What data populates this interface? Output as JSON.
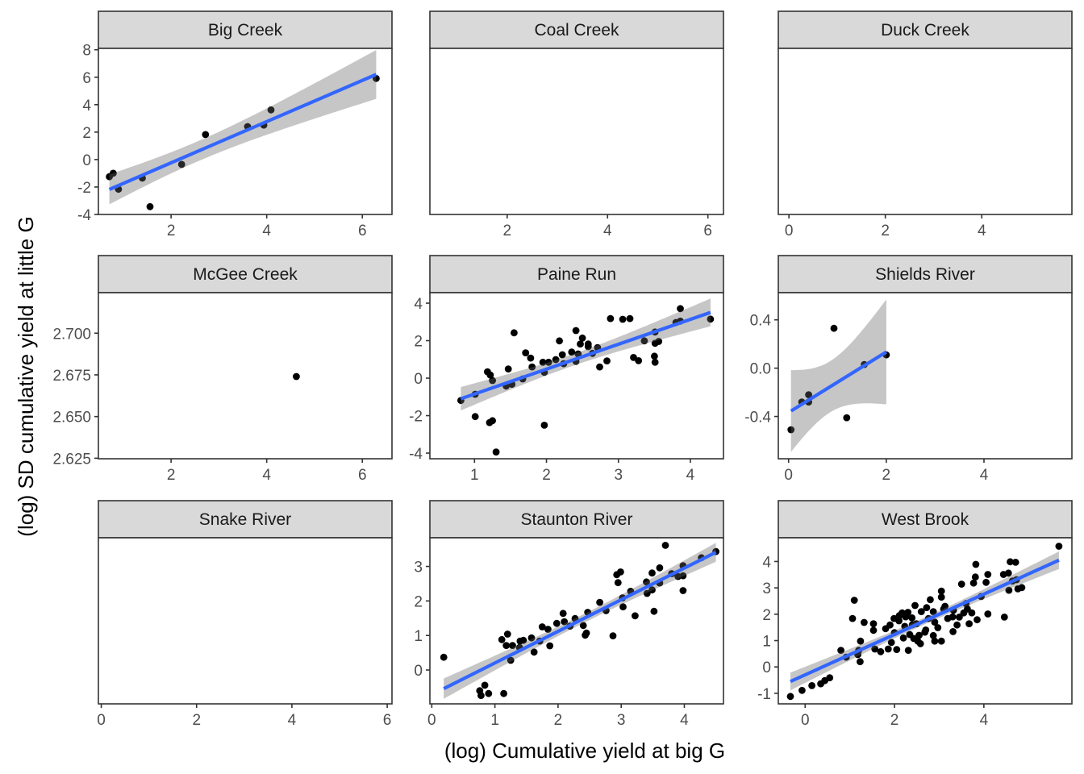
{
  "chart_data": {
    "type": "scatter",
    "layout": "facet_wrap 3x3, free scales",
    "xlabel": "(log) Cumulative yield at big G",
    "ylabel": "(log) SD cumulative yield at little G",
    "smooth": "linear fit with 95% confidence band",
    "colors": {
      "points": "#000000",
      "fit_line": "#3366FF",
      "ribbon": "#D6D6D6",
      "strip_bg": "#D9D9D9",
      "panel_border": "#333333",
      "tick_text": "#4D4D4D"
    },
    "panels": [
      {
        "title": "Big Creek",
        "xlim": [
          0.48,
          6.62
        ],
        "ylim": [
          -4.0,
          8.1
        ],
        "xticks": [
          2,
          4,
          6
        ],
        "xtick_labels": [
          "2",
          "4",
          "6"
        ],
        "yticks": [
          8,
          6,
          4,
          2,
          0,
          -2,
          -4
        ],
        "ytick_labels": [
          "8",
          "6",
          "4",
          "2",
          "0",
          "-2",
          "-4"
        ],
        "show_yticks": true,
        "fit": true,
        "points": [
          [
            0.71,
            -1.25
          ],
          [
            0.79,
            -1.0
          ],
          [
            0.9,
            -2.16
          ],
          [
            1.4,
            -1.35
          ],
          [
            1.56,
            -3.43
          ],
          [
            2.22,
            -0.35
          ],
          [
            2.72,
            1.82
          ],
          [
            3.6,
            2.4
          ],
          [
            3.94,
            2.51
          ],
          [
            4.09,
            3.62
          ],
          [
            6.29,
            5.91
          ]
        ]
      },
      {
        "title": "Coal Creek",
        "xlim": [
          0.46,
          6.31
        ],
        "ylim": [
          -4.0,
          8.1
        ],
        "xticks": [
          2,
          4,
          6
        ],
        "xtick_labels": [
          "2",
          "4",
          "6"
        ],
        "yticks": [],
        "ytick_labels": [],
        "show_yticks": false,
        "fit": false,
        "points": []
      },
      {
        "title": "Duck Creek",
        "xlim": [
          -0.22,
          5.87
        ],
        "ylim": [
          -4.0,
          8.1
        ],
        "xticks": [
          0,
          2,
          4
        ],
        "xtick_labels": [
          "0",
          "2",
          "4"
        ],
        "yticks": [],
        "ytick_labels": [],
        "show_yticks": false,
        "fit": false,
        "points": []
      },
      {
        "title": "McGee Creek",
        "xlim": [
          0.48,
          6.62
        ],
        "ylim": [
          2.6247,
          2.7243
        ],
        "xticks": [
          2,
          4,
          6
        ],
        "xtick_labels": [
          "2",
          "4",
          "6"
        ],
        "yticks": [
          2.7,
          2.675,
          2.65,
          2.625
        ],
        "ytick_labels": [
          "2.700",
          "2.675",
          "2.650",
          "2.625"
        ],
        "show_yticks": true,
        "fit": false,
        "points": [
          [
            4.62,
            2.674
          ]
        ]
      },
      {
        "title": "Paine Run",
        "xlim": [
          0.38,
          4.46
        ],
        "ylim": [
          -4.3,
          4.56
        ],
        "xticks": [
          1,
          2,
          3,
          4
        ],
        "xtick_labels": [
          "1",
          "2",
          "3",
          "4"
        ],
        "yticks": [
          4,
          2,
          0,
          -2,
          -4
        ],
        "ytick_labels": [
          "4",
          "2",
          "0",
          "-2",
          "-4"
        ],
        "show_yticks": true,
        "fit": true,
        "points": [
          [
            0.81,
            -1.19
          ],
          [
            1.01,
            -0.86
          ],
          [
            1.01,
            -2.05
          ],
          [
            1.18,
            0.34
          ],
          [
            1.22,
            0.17
          ],
          [
            1.21,
            -2.37
          ],
          [
            1.25,
            -2.27
          ],
          [
            1.25,
            -0.13
          ],
          [
            1.3,
            -3.94
          ],
          [
            1.44,
            -0.42
          ],
          [
            1.47,
            0.49
          ],
          [
            1.52,
            -0.33
          ],
          [
            1.55,
            2.42
          ],
          [
            1.67,
            -0.04
          ],
          [
            1.71,
            1.35
          ],
          [
            1.78,
            1.07
          ],
          [
            1.8,
            0.6
          ],
          [
            1.95,
            0.85
          ],
          [
            1.97,
            0.31
          ],
          [
            1.97,
            -2.51
          ],
          [
            2.03,
            0.85
          ],
          [
            2.13,
            0.99
          ],
          [
            2.18,
            1.99
          ],
          [
            2.22,
            1.25
          ],
          [
            2.24,
            0.77
          ],
          [
            2.35,
            1.39
          ],
          [
            2.41,
            2.54
          ],
          [
            2.41,
            0.89
          ],
          [
            2.44,
            1.29
          ],
          [
            2.5,
            2.14
          ],
          [
            2.47,
            1.82
          ],
          [
            2.58,
            1.82
          ],
          [
            2.58,
            1.68
          ],
          [
            2.64,
            1.32
          ],
          [
            2.71,
            1.63
          ],
          [
            2.74,
            0.6
          ],
          [
            2.84,
            0.92
          ],
          [
            2.89,
            3.18
          ],
          [
            3.06,
            3.14
          ],
          [
            3.16,
            3.18
          ],
          [
            3.21,
            1.1
          ],
          [
            3.28,
            0.93
          ],
          [
            3.36,
            1.99
          ],
          [
            3.5,
            1.17
          ],
          [
            3.51,
            0.85
          ],
          [
            3.51,
            1.86
          ],
          [
            3.56,
            1.96
          ],
          [
            3.51,
            2.46
          ],
          [
            3.8,
            2.97
          ],
          [
            3.86,
            3.71
          ],
          [
            3.86,
            3.04
          ],
          [
            4.28,
            3.15
          ]
        ]
      },
      {
        "title": "Shields River",
        "xlim": [
          -0.21,
          5.8
        ],
        "ylim": [
          -0.75,
          0.625
        ],
        "xticks": [
          0,
          2,
          4
        ],
        "xtick_labels": [
          "0",
          "2",
          "4"
        ],
        "yticks": [
          0.4,
          0.0,
          -0.4
        ],
        "ytick_labels": [
          "0.4",
          "0.0",
          "-0.4"
        ],
        "show_yticks": true,
        "fit": true,
        "points": [
          [
            0.05,
            -0.51
          ],
          [
            0.27,
            -0.28
          ],
          [
            0.41,
            -0.22
          ],
          [
            0.41,
            -0.28
          ],
          [
            0.93,
            0.33
          ],
          [
            1.19,
            -0.41
          ],
          [
            1.55,
            0.03
          ],
          [
            2.0,
            0.11
          ]
        ]
      },
      {
        "title": "Snake River",
        "xlim": [
          -0.06,
          6.1
        ],
        "ylim": [
          -1.0,
          1.0
        ],
        "xticks": [
          0,
          2,
          4,
          6
        ],
        "xtick_labels": [
          "0",
          "2",
          "4",
          "6"
        ],
        "yticks": [],
        "ytick_labels": [],
        "show_yticks": false,
        "fit": false,
        "points": []
      },
      {
        "title": "Staunton River",
        "xlim": [
          -0.03,
          4.62
        ],
        "ylim": [
          -0.98,
          3.83
        ],
        "xticks": [
          0,
          1,
          2,
          3,
          4
        ],
        "xtick_labels": [
          "0",
          "1",
          "2",
          "3",
          "4"
        ],
        "yticks": [
          3,
          2,
          1,
          0
        ],
        "ytick_labels": [
          "3",
          "2",
          "1",
          "0"
        ],
        "show_yticks": true,
        "fit": true,
        "points": [
          [
            0.19,
            0.37
          ],
          [
            0.76,
            -0.6
          ],
          [
            0.84,
            -0.44
          ],
          [
            0.78,
            -0.74
          ],
          [
            0.9,
            -0.68
          ],
          [
            1.14,
            -0.68
          ],
          [
            1.11,
            0.88
          ],
          [
            1.2,
            1.04
          ],
          [
            1.18,
            0.71
          ],
          [
            1.28,
            0.71
          ],
          [
            1.25,
            0.28
          ],
          [
            1.39,
            0.65
          ],
          [
            1.4,
            0.84
          ],
          [
            1.45,
            0.86
          ],
          [
            1.58,
            0.93
          ],
          [
            1.62,
            0.52
          ],
          [
            1.75,
            1.25
          ],
          [
            1.84,
            1.18
          ],
          [
            1.87,
            0.7
          ],
          [
            1.71,
            0.84
          ],
          [
            1.98,
            1.35
          ],
          [
            2.08,
            1.64
          ],
          [
            2.1,
            1.4
          ],
          [
            2.19,
            1.27
          ],
          [
            2.27,
            1.49
          ],
          [
            2.4,
            1.29
          ],
          [
            2.47,
            1.67
          ],
          [
            2.43,
            1.01
          ],
          [
            2.45,
            1.07
          ],
          [
            2.66,
            1.96
          ],
          [
            2.76,
            1.72
          ],
          [
            2.87,
            0.99
          ],
          [
            2.93,
            2.76
          ],
          [
            2.99,
            2.84
          ],
          [
            2.95,
            2.53
          ],
          [
            3.02,
            2.09
          ],
          [
            3.03,
            1.83
          ],
          [
            3.15,
            2.28
          ],
          [
            3.22,
            1.57
          ],
          [
            3.4,
            2.55
          ],
          [
            3.41,
            2.22
          ],
          [
            3.49,
            2.32
          ],
          [
            3.49,
            2.81
          ],
          [
            3.52,
            1.7
          ],
          [
            3.61,
            2.96
          ],
          [
            3.61,
            2.52
          ],
          [
            3.7,
            3.61
          ],
          [
            3.8,
            2.79
          ],
          [
            3.9,
            2.71
          ],
          [
            3.98,
            3.02
          ],
          [
            3.98,
            2.73
          ],
          [
            3.98,
            2.3
          ],
          [
            4.27,
            3.25
          ],
          [
            4.5,
            3.43
          ]
        ]
      },
      {
        "title": "West Brook",
        "xlim": [
          -0.6,
          5.97
        ],
        "ylim": [
          -1.4,
          4.9
        ],
        "xticks": [
          0,
          2,
          4
        ],
        "xtick_labels": [
          "0",
          "2",
          "4"
        ],
        "yticks": [
          4,
          3,
          2,
          1,
          0,
          -1
        ],
        "ytick_labels": [
          "4",
          "3",
          "2",
          "1",
          "0",
          "-1"
        ],
        "show_yticks": true,
        "fit": true,
        "points": [
          [
            -0.33,
            -1.12
          ],
          [
            -0.07,
            -0.89
          ],
          [
            0.15,
            -0.71
          ],
          [
            0.35,
            -0.64
          ],
          [
            0.44,
            -0.52
          ],
          [
            0.55,
            -0.41
          ],
          [
            0.8,
            0.63
          ],
          [
            0.92,
            0.37
          ],
          [
            1.06,
            1.84
          ],
          [
            1.1,
            2.53
          ],
          [
            1.18,
            0.47
          ],
          [
            1.23,
            0.2
          ],
          [
            1.24,
            0.98
          ],
          [
            1.32,
            1.69
          ],
          [
            1.2,
            0.63
          ],
          [
            1.53,
            1.64
          ],
          [
            1.53,
            1.39
          ],
          [
            1.56,
            0.68
          ],
          [
            1.69,
            0.58
          ],
          [
            1.86,
            0.68
          ],
          [
            1.9,
            1.59
          ],
          [
            1.93,
            0.93
          ],
          [
            1.99,
            1.84
          ],
          [
            2.05,
            0.66
          ],
          [
            2.11,
            1.95
          ],
          [
            2.17,
            2.05
          ],
          [
            2.23,
            1.54
          ],
          [
            2.31,
            0.63
          ],
          [
            2.3,
            2.07
          ],
          [
            2.34,
            1.23
          ],
          [
            2.39,
            1.86
          ],
          [
            2.46,
            2.33
          ],
          [
            2.43,
            1.08
          ],
          [
            2.52,
            0.98
          ],
          [
            2.58,
            0.88
          ],
          [
            2.49,
            1.64
          ],
          [
            2.68,
            1.32
          ],
          [
            2.72,
            2.25
          ],
          [
            2.76,
            1.84
          ],
          [
            2.8,
            2.55
          ],
          [
            2.87,
            2.1
          ],
          [
            2.87,
            1.19
          ],
          [
            2.9,
            0.98
          ],
          [
            2.97,
            1.49
          ],
          [
            3.05,
            2.88
          ],
          [
            3.05,
            0.98
          ],
          [
            3.05,
            2.65
          ],
          [
            3.13,
            2.3
          ],
          [
            3.19,
            1.84
          ],
          [
            3.31,
            1.34
          ],
          [
            3.32,
            2.15
          ],
          [
            3.4,
            1.59
          ],
          [
            3.45,
            1.89
          ],
          [
            3.5,
            3.14
          ],
          [
            3.55,
            2.05
          ],
          [
            3.63,
            2.2
          ],
          [
            3.67,
            1.64
          ],
          [
            3.73,
            2.05
          ],
          [
            3.77,
            3.18
          ],
          [
            3.81,
            3.41
          ],
          [
            3.82,
            3.89
          ],
          [
            3.85,
            1.79
          ],
          [
            3.94,
            2.67
          ],
          [
            4.05,
            3.21
          ],
          [
            4.09,
            3.51
          ],
          [
            4.09,
            2.01
          ],
          [
            4.44,
            3.51
          ],
          [
            4.46,
            1.89
          ],
          [
            4.55,
            3.56
          ],
          [
            4.56,
            2.91
          ],
          [
            4.59,
            3.99
          ],
          [
            4.64,
            3.26
          ],
          [
            4.71,
            3.97
          ],
          [
            4.73,
            3.31
          ],
          [
            4.76,
            2.96
          ],
          [
            4.85,
            3.01
          ],
          [
            5.68,
            4.58
          ],
          [
            2.0,
            1.3
          ],
          [
            2.1,
            1.75
          ],
          [
            2.2,
            1.1
          ],
          [
            2.4,
            1.6
          ],
          [
            2.6,
            2.1
          ],
          [
            2.7,
            1.4
          ],
          [
            2.9,
            1.7
          ],
          [
            3.1,
            2.2
          ],
          [
            3.3,
            1.9
          ],
          [
            1.8,
            1.45
          ],
          [
            2.25,
            1.9
          ],
          [
            2.55,
            1.2
          ],
          [
            3.6,
            2.4
          ]
        ]
      }
    ]
  }
}
